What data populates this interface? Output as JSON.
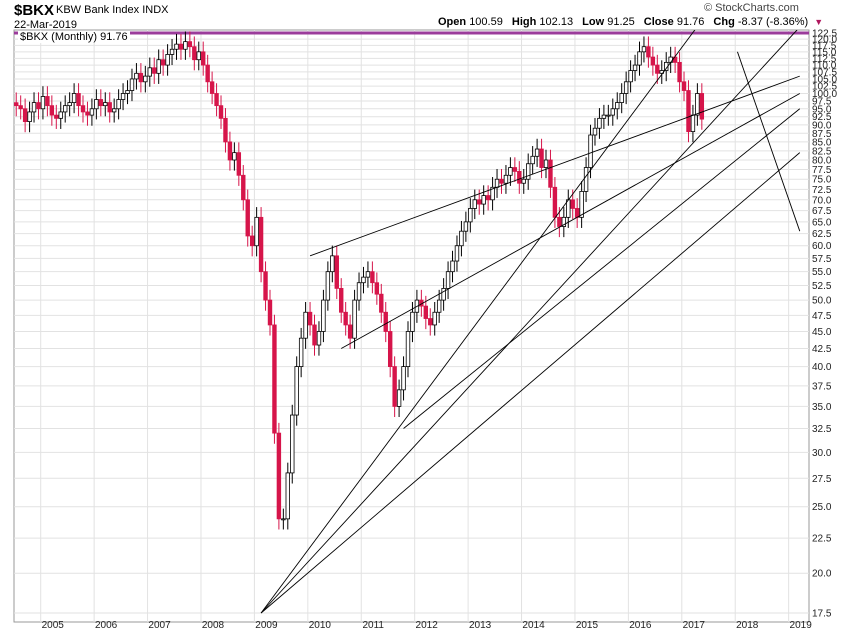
{
  "header": {
    "symbol": "$BKX",
    "name": "KBW Bank Index INDX",
    "date": "22-Mar-2019",
    "brand": "© StockCharts.com",
    "legend": "$BKX (Monthly) 91.76",
    "open_label": "Open",
    "open_value": "100.59",
    "high_label": "High",
    "high_value": "102.13",
    "low_label": "Low",
    "low_value": "91.25",
    "close_label": "Close",
    "close_value": "91.76",
    "chg_label": "Chg",
    "chg_value": "-8.37 (-8.36%)"
  },
  "colors": {
    "up": "#000000",
    "down": "#d6154a",
    "resistance": "#9b3c9b",
    "grid": "#e2e2e2"
  },
  "chart_data": {
    "type": "candlestick",
    "interval": "monthly",
    "scale": "log",
    "ylim": [
      17.5,
      122.5
    ],
    "y_ticks": [
      17.5,
      20.0,
      22.5,
      25.0,
      27.5,
      30.0,
      32.5,
      35.0,
      37.5,
      40.0,
      42.5,
      45.0,
      47.5,
      50.0,
      52.5,
      55.0,
      57.5,
      60.0,
      62.5,
      65.0,
      67.5,
      70.0,
      72.5,
      75.0,
      77.5,
      80.0,
      82.5,
      85.0,
      87.5,
      90.0,
      92.5,
      95.0,
      97.5,
      100.0,
      102.5,
      105.0,
      107.5,
      110.0,
      112.5,
      115.0,
      117.5,
      120.0,
      122.5
    ],
    "x_ticks": [
      "2005",
      "2006",
      "2007",
      "2008",
      "2009",
      "2010",
      "2011",
      "2012",
      "2013",
      "2014",
      "2015",
      "2016",
      "2017",
      "2018",
      "2019"
    ],
    "x_range": [
      "2004-07",
      "2019-03"
    ],
    "closes": [
      96,
      95,
      91,
      94,
      97,
      95,
      99,
      96,
      93,
      92,
      94,
      96,
      97,
      100,
      96,
      94,
      93,
      95,
      98,
      96,
      97,
      94,
      95,
      98,
      100,
      101,
      105,
      107,
      104,
      106,
      109,
      107,
      112,
      110,
      114,
      116,
      118,
      116,
      119,
      117,
      112,
      115,
      110,
      104,
      100,
      96,
      92,
      85,
      80,
      82,
      76,
      70,
      62,
      60,
      66,
      55,
      50,
      46,
      32,
      24,
      24,
      28,
      34,
      40,
      44,
      48,
      46,
      43,
      45,
      50,
      55,
      58,
      52,
      48,
      46,
      44,
      50,
      53,
      54,
      55,
      53,
      51,
      48,
      45,
      40,
      35,
      37,
      40,
      45,
      48,
      50,
      49,
      47,
      46,
      48,
      50,
      52,
      55,
      57,
      60,
      63,
      65,
      68,
      70,
      69,
      71,
      70,
      73,
      75,
      74,
      76,
      78,
      77,
      74,
      75,
      79,
      81,
      83,
      78,
      80,
      73,
      66,
      64,
      66,
      70,
      68,
      66,
      72,
      78,
      87,
      89,
      92,
      93,
      93,
      95,
      97,
      100,
      104,
      108,
      110,
      115,
      117,
      113,
      110,
      107,
      108,
      111,
      113,
      111,
      104,
      101,
      88,
      93,
      100,
      91.76
    ],
    "series": [
      {
        "name": "$BKX (Monthly)",
        "last": 91.76
      }
    ],
    "resistance_level": 122.5,
    "trendlines": [
      {
        "from": [
          "2009-02",
          17.5
        ],
        "to": [
          "2018-01",
          150
        ]
      },
      {
        "from": [
          "2009-02",
          17.5
        ],
        "to": [
          "2019-03",
          125
        ]
      },
      {
        "from": [
          "2009-02",
          17.5
        ],
        "to": [
          "2019-03",
          82
        ]
      },
      {
        "from": [
          "2011-10",
          32.5
        ],
        "to": [
          "2019-03",
          95
        ]
      },
      {
        "from": [
          "2010-01",
          58
        ],
        "to": [
          "2019-03",
          106
        ]
      },
      {
        "from": [
          "2010-08",
          42.5
        ],
        "to": [
          "2019-03",
          100
        ]
      },
      {
        "from": [
          "2018-01",
          115
        ],
        "to": [
          "2019-03",
          63
        ]
      }
    ]
  }
}
